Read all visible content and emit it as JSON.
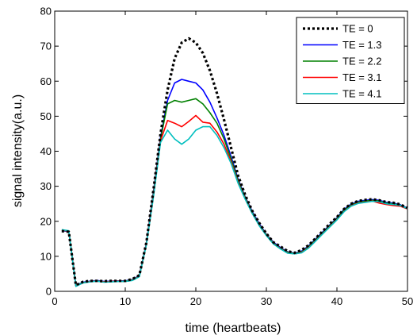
{
  "chart_data": {
    "type": "line",
    "title": "",
    "xlabel": "time (heartbeats)",
    "ylabel": "signal intensity(a.u.)",
    "xlim": [
      0,
      50
    ],
    "ylim": [
      0,
      80
    ],
    "xticks": [
      0,
      10,
      20,
      30,
      40,
      50
    ],
    "yticks": [
      0,
      10,
      20,
      30,
      40,
      50,
      60,
      70,
      80
    ],
    "grid": false,
    "legend_position": "top-right",
    "x": [
      1,
      2,
      3,
      4,
      5,
      6,
      7,
      8,
      9,
      10,
      11,
      12,
      13,
      14,
      15,
      16,
      17,
      18,
      19,
      20,
      21,
      22,
      23,
      24,
      25,
      26,
      27,
      28,
      29,
      30,
      31,
      32,
      33,
      34,
      35,
      36,
      37,
      38,
      39,
      40,
      41,
      42,
      43,
      44,
      45,
      46,
      47,
      48,
      49,
      50
    ],
    "series": [
      {
        "name": "TE = 0",
        "color": "#000000",
        "style": "dotted",
        "values": [
          17.2,
          17.0,
          1.8,
          2.7,
          3.0,
          3.0,
          2.9,
          3.0,
          3.0,
          3.0,
          3.5,
          4.6,
          14.0,
          29.0,
          45.0,
          57.5,
          66.5,
          71.0,
          72.2,
          71.0,
          68.0,
          63.0,
          56.5,
          49.0,
          41.0,
          33.0,
          27.5,
          23.0,
          19.5,
          16.5,
          14.0,
          12.8,
          11.5,
          11.0,
          11.8,
          13.2,
          15.2,
          17.2,
          19.3,
          21.2,
          23.5,
          25.0,
          25.8,
          26.1,
          26.3,
          26.0,
          25.5,
          25.3,
          24.8,
          23.8
        ]
      },
      {
        "name": "TE = 1.3",
        "color": "#0000ff",
        "style": "solid",
        "values": [
          17.3,
          17.1,
          1.7,
          2.6,
          2.9,
          3.1,
          2.8,
          2.9,
          3.0,
          3.0,
          3.4,
          4.5,
          13.8,
          28.5,
          44.0,
          54.5,
          59.5,
          60.5,
          60.0,
          59.5,
          57.5,
          54.0,
          49.5,
          44.5,
          38.5,
          32.0,
          27.0,
          22.8,
          19.3,
          16.3,
          14.0,
          12.5,
          11.3,
          10.9,
          11.5,
          13.0,
          15.0,
          17.0,
          19.0,
          21.0,
          23.4,
          24.9,
          25.7,
          26.0,
          26.2,
          26.0,
          25.4,
          25.2,
          24.7,
          23.7
        ]
      },
      {
        "name": "TE = 2.2",
        "color": "#008000",
        "style": "solid",
        "values": [
          17.4,
          17.2,
          1.6,
          2.5,
          2.8,
          3.0,
          2.7,
          2.8,
          2.9,
          2.9,
          3.3,
          4.4,
          13.6,
          28.0,
          43.5,
          53.5,
          54.5,
          54.0,
          54.5,
          55.0,
          53.5,
          51.0,
          48.0,
          43.5,
          37.8,
          31.5,
          26.8,
          22.5,
          19.0,
          16.2,
          13.8,
          12.3,
          11.2,
          10.8,
          11.3,
          12.8,
          14.8,
          16.8,
          18.8,
          20.8,
          23.2,
          24.7,
          25.5,
          25.8,
          26.0,
          25.8,
          25.2,
          25.0,
          24.6,
          23.6
        ]
      },
      {
        "name": "TE = 3.1",
        "color": "#ff0000",
        "style": "solid",
        "values": [
          17.5,
          17.2,
          1.5,
          2.4,
          2.8,
          2.9,
          2.7,
          2.8,
          2.9,
          2.8,
          3.2,
          4.3,
          13.5,
          27.5,
          43.0,
          48.8,
          48.0,
          47.0,
          48.5,
          50.2,
          48.3,
          48.0,
          45.5,
          42.0,
          37.0,
          31.0,
          26.5,
          22.3,
          18.8,
          16.0,
          13.6,
          12.2,
          11.0,
          10.7,
          11.1,
          12.5,
          14.5,
          16.5,
          18.5,
          20.5,
          22.8,
          24.4,
          25.2,
          25.5,
          25.8,
          25.2,
          24.8,
          24.5,
          24.3,
          23.5
        ]
      },
      {
        "name": "TE = 4.1",
        "color": "#00bfbf",
        "style": "solid",
        "values": [
          17.6,
          17.3,
          1.4,
          2.4,
          2.7,
          2.9,
          2.6,
          2.7,
          2.8,
          2.8,
          3.1,
          4.2,
          13.4,
          27.0,
          42.5,
          46.0,
          43.5,
          42.0,
          43.5,
          46.0,
          47.0,
          47.0,
          44.5,
          41.0,
          36.5,
          30.8,
          26.3,
          22.2,
          18.7,
          15.9,
          13.5,
          12.1,
          10.9,
          10.7,
          11.0,
          12.4,
          14.4,
          16.4,
          18.4,
          20.4,
          22.7,
          24.3,
          25.1,
          25.4,
          25.7,
          25.6,
          25.0,
          24.8,
          24.5,
          23.6
        ]
      }
    ]
  }
}
